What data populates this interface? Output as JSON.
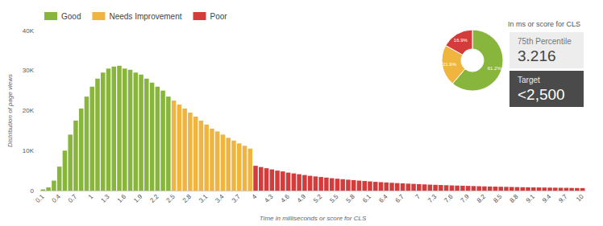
{
  "chart_data": [
    {
      "type": "bar",
      "x_label": "Time in milliseconds or score for CLS",
      "y_label": "Distribution of page views",
      "categories": [
        "0.1",
        null,
        null,
        "0.4",
        null,
        null,
        "0.7",
        null,
        null,
        "1",
        null,
        null,
        "1.3",
        null,
        null,
        "1.6",
        null,
        null,
        "1.9",
        null,
        null,
        "2.2",
        null,
        null,
        "2.5",
        null,
        null,
        "2.8",
        null,
        null,
        "3.1",
        null,
        null,
        "3.4",
        null,
        null,
        "3.7",
        null,
        null,
        "4",
        null,
        null,
        "4.3",
        null,
        null,
        "4.6",
        null,
        null,
        "4.9",
        null,
        null,
        "5.2",
        null,
        null,
        "5.5",
        null,
        null,
        "5.8",
        null,
        null,
        "6.1",
        null,
        null,
        "6.4",
        null,
        null,
        "6.7",
        null,
        null,
        "7",
        null,
        null,
        "7.3",
        null,
        null,
        "7.6",
        null,
        null,
        "7.9",
        null,
        null,
        "8.2",
        null,
        null,
        "8.5",
        null,
        null,
        "8.8",
        null,
        null,
        "9.1",
        null,
        null,
        "9.4",
        null,
        null,
        "9.7",
        null,
        null,
        "10"
      ],
      "series": [
        {
          "name": "Good",
          "color": "#88b63c",
          "values": [
            300,
            800,
            2500,
            6000,
            10000,
            14000,
            17500,
            20500,
            23500,
            26000,
            28000,
            29500,
            30500,
            31000,
            31200,
            30500,
            30200,
            29500,
            29000,
            28000,
            27000,
            26000,
            25000,
            23500,
            null,
            null,
            null,
            null,
            null,
            null,
            null,
            null,
            null,
            null,
            null,
            null,
            null,
            null,
            null,
            null,
            null,
            null,
            null,
            null,
            null,
            null,
            null,
            null,
            null,
            null,
            null,
            null,
            null,
            null,
            null,
            null,
            null,
            null,
            null,
            null,
            null,
            null,
            null,
            null,
            null,
            null,
            null,
            null,
            null,
            null,
            null,
            null,
            null,
            null,
            null,
            null,
            null,
            null,
            null,
            null,
            null,
            null,
            null,
            null,
            null,
            null,
            null,
            null,
            null,
            null,
            null,
            null,
            null,
            null,
            null,
            null,
            null,
            null,
            null,
            null
          ]
        },
        {
          "name": "Needs Improvement",
          "color": "#efb53f",
          "values": [
            null,
            null,
            null,
            null,
            null,
            null,
            null,
            null,
            null,
            null,
            null,
            null,
            null,
            null,
            null,
            null,
            null,
            null,
            null,
            null,
            null,
            null,
            null,
            null,
            22500,
            21500,
            20500,
            19500,
            18500,
            17500,
            16500,
            15500,
            14800,
            14000,
            13200,
            12500,
            11800,
            11200,
            10500,
            null,
            null,
            null,
            null,
            null,
            null,
            null,
            null,
            null,
            null,
            null,
            null,
            null,
            null,
            null,
            null,
            null,
            null,
            null,
            null,
            null,
            null,
            null,
            null,
            null,
            null,
            null,
            null,
            null,
            null,
            null,
            null,
            null,
            null,
            null,
            null,
            null,
            null,
            null,
            null,
            null,
            null,
            null,
            null,
            null,
            null,
            null,
            null,
            null,
            null,
            null,
            null,
            null,
            null,
            null,
            null,
            null,
            null,
            null,
            null,
            null
          ]
        },
        {
          "name": "Poor",
          "color": "#d43c3c",
          "values": [
            null,
            null,
            null,
            null,
            null,
            null,
            null,
            null,
            null,
            null,
            null,
            null,
            null,
            null,
            null,
            null,
            null,
            null,
            null,
            null,
            null,
            null,
            null,
            null,
            null,
            null,
            null,
            null,
            null,
            null,
            null,
            null,
            null,
            null,
            null,
            null,
            null,
            null,
            null,
            6200,
            5900,
            5600,
            5300,
            5000,
            4800,
            4500,
            4300,
            4100,
            3900,
            3700,
            3550,
            3400,
            3250,
            3100,
            2980,
            2850,
            2730,
            2620,
            2500,
            2400,
            2300,
            2200,
            2120,
            2040,
            1960,
            1880,
            1810,
            1740,
            1680,
            1620,
            1560,
            1500,
            1450,
            1400,
            1350,
            1300,
            1260,
            1220,
            1180,
            1140,
            1100,
            1060,
            1030,
            1000,
            970,
            940,
            910,
            880,
            850,
            830,
            810,
            790,
            770,
            750,
            730,
            710,
            690,
            670,
            650,
            630
          ]
        }
      ],
      "ylim": [
        0,
        40000
      ],
      "yticks": [
        0,
        {
          "value": 10000,
          "label": "10K"
        },
        {
          "value": 20000,
          "label": "20K"
        },
        {
          "value": 30000,
          "label": "30K"
        },
        {
          "value": 40000,
          "label": "40K"
        }
      ],
      "grid": false,
      "legend": "top-left",
      "annotations": {
        "heading": "In ms or score for CLS",
        "items": [
          {
            "label": "75th Percentile",
            "value": "3.216"
          },
          {
            "label": "Target",
            "value": "<2,500"
          }
        ]
      }
    },
    {
      "type": "pie",
      "categories": [
        "Good",
        "Needs Improvement",
        "Poor"
      ],
      "values": [
        61.2,
        21.9,
        16.9
      ],
      "value_labels": [
        "61.2%",
        "21.9%",
        "16.9%"
      ],
      "colors": [
        "#88b63c",
        "#efb53f",
        "#d43c3c"
      ],
      "data_labels": true
    }
  ]
}
